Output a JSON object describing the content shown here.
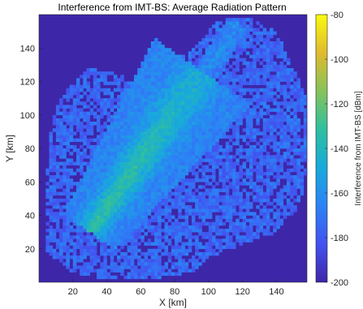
{
  "chart_data": {
    "type": "heatmap",
    "title": "Interference from IMT-BS: Average Radiation Pattern",
    "xlabel": "X [km]",
    "ylabel": "Y [km]",
    "xlim": [
      0,
      158
    ],
    "ylim": [
      0,
      160
    ],
    "xticks": [
      20,
      40,
      60,
      80,
      100,
      120,
      140
    ],
    "yticks": [
      20,
      40,
      60,
      80,
      100,
      120,
      140
    ],
    "colorbar": {
      "label": "Interference from IMT-BS [dBm]",
      "range": [
        -200,
        -80
      ],
      "ticks": [
        -200,
        -180,
        -160,
        -140,
        -120,
        -100,
        -80
      ],
      "colormap": "parula"
    },
    "background_value": -200,
    "features": {
      "main_beam": {
        "start": [
          33,
          35
        ],
        "end": [
          93,
          121
        ],
        "peak_value": -135,
        "edge_value": -165
      },
      "coverage_region_level": -175,
      "secondary_beam_top_right": {
        "start": [
          94,
          120
        ],
        "end": [
          118,
          155
        ],
        "level": -160
      }
    },
    "grid": false,
    "colors": {
      "background": "#3e26a8",
      "parula_stops": [
        "#3e26a8",
        "#4352f0",
        "#2c82f6",
        "#18aadc",
        "#2fbf9f",
        "#86c35a",
        "#e0ba2e",
        "#f9fb0e"
      ]
    }
  }
}
